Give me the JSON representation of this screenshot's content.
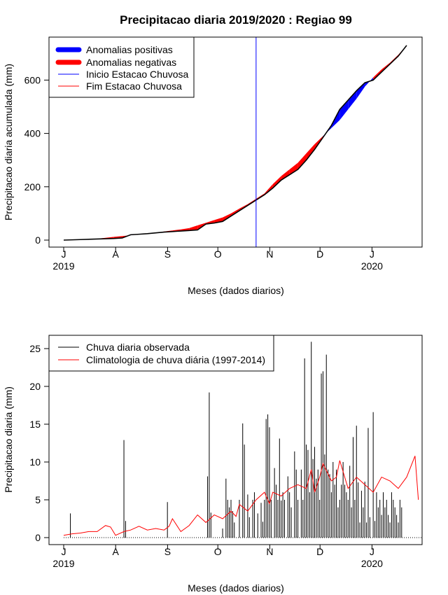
{
  "title": "Precipitacao diaria 2019/2020 : Regiao 99",
  "colors": {
    "positive": "#0000ff",
    "negative": "#ff0000",
    "start": "#0000ff",
    "end": "#ff0000",
    "observed": "#000000",
    "clim": "#ff0000"
  },
  "chart_data": [
    {
      "type": "area",
      "title": "Precipitacao diaria 2019/2020 : Regiao 99",
      "xlabel": "Meses (dados diarios)",
      "ylabel": "Precipitacao diaria acumulada (mm)",
      "x_ticks": [
        "J",
        "A",
        "S",
        "O",
        "N",
        "D",
        "J"
      ],
      "x_tick_days": [
        0,
        31,
        62,
        92,
        123,
        153,
        184
      ],
      "year_labels": [
        {
          "day": 0,
          "label": "2019"
        },
        {
          "day": 184,
          "label": "2020"
        }
      ],
      "xlim": [
        -7,
        212
      ],
      "ylim": [
        -20,
        760
      ],
      "yticks": [
        0,
        200,
        400,
        600
      ],
      "start_rainy_season_day": 115,
      "legend": [
        "Anomalias positivas",
        "Anomalias negativas",
        "Inicio Estacao Chuvosa",
        "Fim Estacao Chuvosa"
      ],
      "series": [
        {
          "name": "observed_accumulated",
          "x": [
            0,
            10,
            20,
            30,
            35,
            40,
            45,
            50,
            55,
            60,
            65,
            70,
            75,
            80,
            85,
            90,
            95,
            100,
            105,
            110,
            115,
            120,
            125,
            130,
            135,
            140,
            145,
            150,
            155,
            160,
            165,
            170,
            175,
            180,
            185,
            190,
            195,
            200,
            205
          ],
          "values": [
            0,
            2,
            4,
            6,
            8,
            20,
            22,
            24,
            27,
            30,
            32,
            34,
            36,
            38,
            60,
            64,
            70,
            90,
            110,
            130,
            150,
            170,
            195,
            225,
            245,
            265,
            300,
            340,
            385,
            430,
            490,
            525,
            560,
            590,
            600,
            630,
            660,
            690,
            730
          ]
        },
        {
          "name": "climatology_accumulated",
          "x": [
            0,
            10,
            20,
            30,
            35,
            40,
            45,
            50,
            55,
            60,
            65,
            70,
            75,
            80,
            85,
            90,
            95,
            100,
            105,
            110,
            115,
            120,
            125,
            130,
            135,
            140,
            145,
            150,
            155,
            160,
            165,
            170,
            175,
            180,
            185,
            190,
            195,
            200,
            205
          ],
          "values": [
            0,
            2,
            5,
            12,
            15,
            18,
            22,
            24,
            27,
            32,
            36,
            40,
            45,
            55,
            65,
            75,
            85,
            100,
            118,
            135,
            155,
            175,
            210,
            240,
            265,
            290,
            325,
            360,
            390,
            420,
            450,
            490,
            530,
            575,
            610,
            640,
            665,
            695,
            730
          ]
        }
      ]
    },
    {
      "type": "bar",
      "xlabel": "Meses (dados diarios)",
      "ylabel": "Precipitacao diaria (mm)",
      "x_ticks": [
        "J",
        "A",
        "S",
        "O",
        "N",
        "D",
        "J"
      ],
      "x_tick_days": [
        0,
        31,
        62,
        92,
        123,
        153,
        184
      ],
      "year_labels": [
        {
          "day": 0,
          "label": "2019"
        },
        {
          "day": 184,
          "label": "2020"
        }
      ],
      "xlim": [
        -7,
        212
      ],
      "ylim": [
        -1,
        27
      ],
      "yticks": [
        0,
        5,
        10,
        15,
        20,
        25
      ],
      "legend": [
        "Chuva diaria observada",
        "Climatologia de chuva diária (1997-2014)"
      ],
      "series": [
        {
          "name": "Chuva diaria observada",
          "x": [
            4,
            36,
            37,
            62,
            86,
            87,
            88,
            95,
            97,
            98,
            99,
            100,
            101,
            102,
            105,
            107,
            108,
            110,
            111,
            113,
            114,
            116,
            118,
            119,
            120,
            121,
            122,
            123,
            124,
            126,
            127,
            128,
            129,
            130,
            131,
            132,
            134,
            135,
            136,
            138,
            139,
            140,
            142,
            143,
            144,
            145,
            146,
            147,
            148,
            149,
            150,
            151,
            152,
            153,
            154,
            155,
            156,
            157,
            158,
            159,
            160,
            161,
            162,
            163,
            164,
            165,
            166,
            167,
            168,
            169,
            170,
            171,
            172,
            173,
            174,
            175,
            176,
            177,
            178,
            179,
            180,
            181,
            182,
            183,
            185,
            186,
            187,
            188,
            189,
            190,
            191,
            192,
            193,
            194,
            195,
            196,
            197,
            198,
            199,
            200,
            201,
            202
          ],
          "values": [
            3.2,
            12.9,
            2.2,
            4.7,
            8.1,
            19.2,
            3.3,
            1.2,
            7.8,
            5.0,
            4.0,
            5.0,
            3.5,
            2.0,
            5.0,
            15.1,
            12.3,
            5.7,
            2.7,
            5.0,
            6.0,
            3.2,
            4.6,
            2.1,
            5.0,
            15.7,
            16.3,
            14.6,
            5.0,
            9.2,
            7.0,
            5.0,
            13.1,
            4.9,
            6.0,
            5.0,
            8.1,
            6.0,
            4.0,
            11.4,
            9.0,
            5.0,
            9.0,
            5.0,
            23.7,
            12.3,
            11.6,
            6.0,
            25.9,
            10.4,
            12.0,
            7.8,
            9.0,
            5.0,
            21.7,
            22.0,
            11.0,
            24.2,
            9.0,
            8.4,
            6.0,
            10.0,
            7.0,
            9.0,
            4.0,
            5.0,
            7.0,
            10.0,
            7.0,
            6.0,
            5.0,
            9.5,
            4.0,
            13.3,
            5.0,
            14.8,
            7.3,
            2.0,
            6.2,
            4.0,
            7.4,
            2.0,
            14.5,
            2.7,
            16.6,
            2.2,
            6.0,
            4.0,
            5.0,
            3.0,
            6.0,
            4.0,
            5.0,
            3.0,
            2.0,
            6.0,
            5.0,
            4.0,
            3.0,
            2.0,
            5.0,
            4.0
          ]
        },
        {
          "name": "Climatologia de chuva diária (1997-2014)",
          "x": [
            0,
            5,
            10,
            15,
            20,
            25,
            28,
            31,
            36,
            40,
            45,
            50,
            55,
            60,
            63,
            65,
            70,
            75,
            80,
            85,
            90,
            95,
            100,
            103,
            105,
            110,
            115,
            120,
            123,
            125,
            130,
            135,
            140,
            145,
            148,
            150,
            153,
            155,
            160,
            163,
            165,
            170,
            175,
            180,
            185,
            190,
            195,
            200,
            205,
            210,
            212
          ],
          "values": [
            0.3,
            0.5,
            0.6,
            0.8,
            0.8,
            1.6,
            1.4,
            0.3,
            0.8,
            1.0,
            1.5,
            1.0,
            1.2,
            1.0,
            1.5,
            2.5,
            0.8,
            1.6,
            3.0,
            2.0,
            3.0,
            2.5,
            3.5,
            2.8,
            4.4,
            3.5,
            5.0,
            6.0,
            4.5,
            6.0,
            5.5,
            6.5,
            7.0,
            6.5,
            9.0,
            6.0,
            8.0,
            9.8,
            7.5,
            8.0,
            10.2,
            6.5,
            8.0,
            7.0,
            6.0,
            8.0,
            7.5,
            6.5,
            8.0,
            10.8,
            5.0
          ]
        }
      ]
    }
  ],
  "panel1": {
    "xlabel": "Meses (dados diarios)",
    "ylabel": "Precipitacao diaria acumulada (mm)",
    "legend": {
      "positive": "Anomalias positivas",
      "negative": "Anomalias negativas",
      "start": "Inicio Estacao Chuvosa",
      "end": "Fim Estacao Chuvosa"
    },
    "months": [
      "J",
      "A",
      "S",
      "O",
      "N",
      "D",
      "J"
    ],
    "years": [
      "2019",
      "2020"
    ],
    "yticks": [
      "0",
      "200",
      "400",
      "600"
    ]
  },
  "panel2": {
    "xlabel": "Meses (dados diarios)",
    "ylabel": "Precipitacao diaria (mm)",
    "legend": {
      "observed": "Chuva diaria observada",
      "clim": "Climatologia de chuva diária (1997-2014)"
    },
    "months": [
      "J",
      "A",
      "S",
      "O",
      "N",
      "D",
      "J"
    ],
    "years": [
      "2019",
      "2020"
    ],
    "yticks": [
      "0",
      "5",
      "10",
      "15",
      "20",
      "25"
    ]
  }
}
